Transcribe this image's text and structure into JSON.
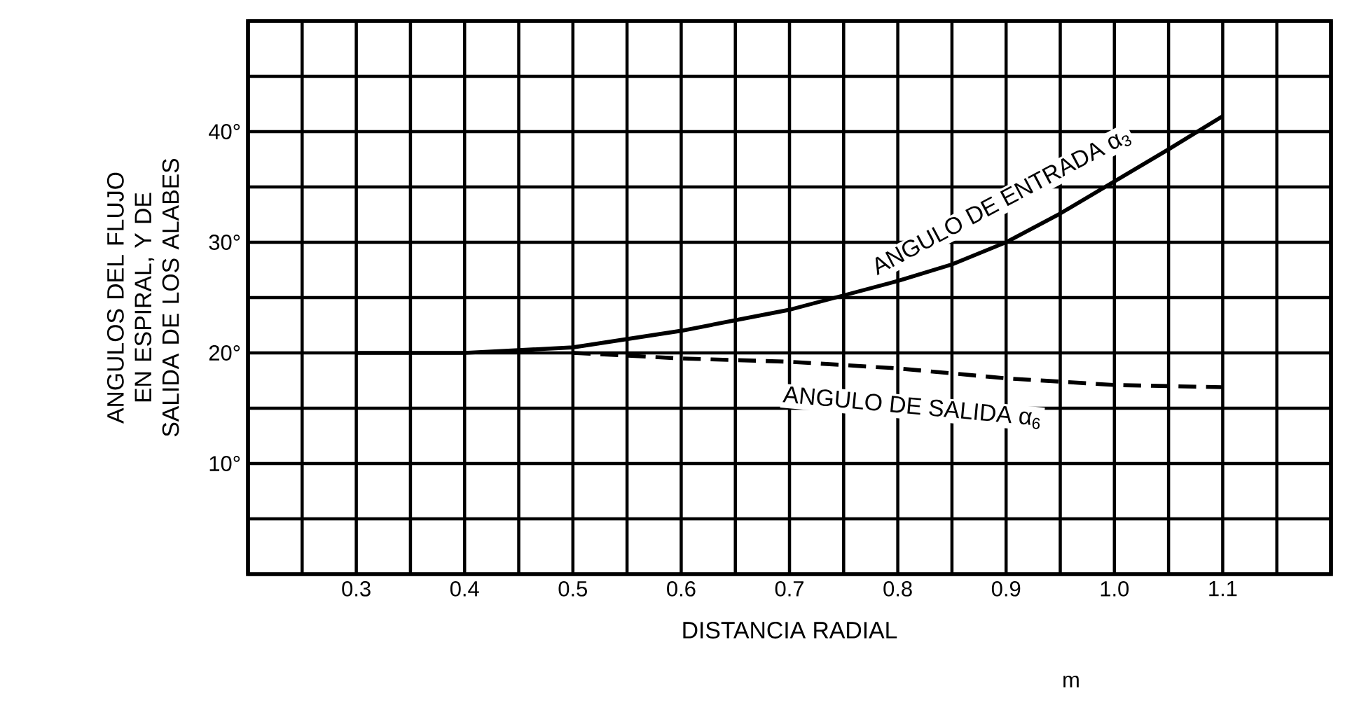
{
  "chart_data": {
    "type": "line",
    "xlabel": "DISTANCIA RADIAL",
    "ylabel": "ANGULOS DEL FLUJO EN ESPIRAL, Y DE SALIDA DE LOS ALABES",
    "annotations": [
      "m"
    ],
    "xlim": [
      0.2,
      1.2
    ],
    "ylim": [
      0,
      50
    ],
    "xticks": [
      {
        "value": 0.2,
        "label": null
      },
      {
        "value": 0.25,
        "label": null
      },
      0.3,
      {
        "value": 0.35,
        "label": null
      },
      0.4,
      {
        "value": 0.45,
        "label": null
      },
      0.5,
      {
        "value": 0.55,
        "label": null
      },
      0.6,
      {
        "value": 0.65,
        "label": null
      },
      0.7,
      {
        "value": 0.75,
        "label": null
      },
      0.8,
      {
        "value": 0.85,
        "label": null
      },
      0.9,
      {
        "value": 0.95,
        "label": null
      },
      {
        "value": 1.0,
        "label": "1.0"
      },
      {
        "value": 1.05,
        "label": null
      },
      1.1,
      {
        "value": 1.15,
        "label": null
      },
      {
        "value": 1.2,
        "label": null
      }
    ],
    "yticks": [
      {
        "value": 0,
        "label": null
      },
      {
        "value": 5,
        "label": null
      },
      {
        "value": 10,
        "label": "10°"
      },
      {
        "value": 15,
        "label": null
      },
      {
        "value": 20,
        "label": "20°"
      },
      {
        "value": 25,
        "label": null
      },
      {
        "value": 30,
        "label": "30°"
      },
      {
        "value": 35,
        "label": null
      },
      {
        "value": 40,
        "label": "40°"
      },
      {
        "value": 45,
        "label": null
      },
      {
        "value": 50,
        "label": null
      }
    ],
    "grid": true,
    "marker": "none",
    "series": [
      {
        "name": "ANGULO DE ENTRADA α$_{3}$",
        "color": "#000000",
        "line_style": "solid",
        "x": [
          0.3,
          0.4,
          0.5,
          0.6,
          0.7,
          0.75,
          0.8,
          0.85,
          0.9,
          0.95,
          1.0,
          1.05,
          1.1
        ],
        "values": [
          20,
          20,
          20.5,
          22,
          23.9,
          25.2,
          26.5,
          28,
          30,
          32.6,
          35.5,
          38.4,
          41.4
        ]
      },
      {
        "name": "ANGULO DE SALIDA α$_{6}$",
        "color": "#000000",
        "line_style": "dashed",
        "x": [
          0.5,
          0.6,
          0.7,
          0.8,
          0.9,
          1.0,
          1.1
        ],
        "values": [
          20,
          19.5,
          19.2,
          18.6,
          17.7,
          17.1,
          16.9
        ]
      }
    ]
  }
}
